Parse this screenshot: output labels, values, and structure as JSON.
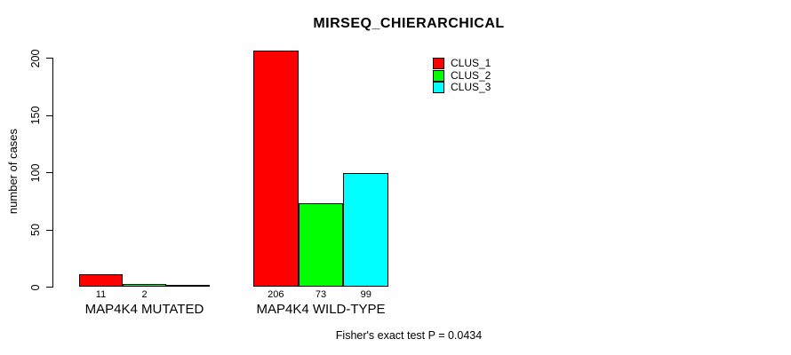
{
  "chart_data": {
    "type": "bar",
    "title": "MIRSEQ_CHIERARCHICAL",
    "ylabel": "number of cases",
    "xlabel": "",
    "categories": [
      "MAP4K4 MUTATED",
      "MAP4K4 WILD-TYPE"
    ],
    "series": [
      {
        "name": "CLUS_1",
        "color": "#ff0000",
        "values": [
          11,
          206
        ]
      },
      {
        "name": "CLUS_2",
        "color": "#00ff00",
        "values": [
          2,
          73
        ]
      },
      {
        "name": "CLUS_3",
        "color": "#00ffff",
        "values": [
          0,
          99
        ]
      }
    ],
    "yticks": [
      0,
      50,
      100,
      150,
      200
    ],
    "ylim": [
      0,
      200
    ],
    "grid": false,
    "bar_value_labels_shown_for_nonzero": true,
    "legend": {
      "position": "top-right",
      "entries": [
        {
          "label": "CLUS_1",
          "color": "#ff0000"
        },
        {
          "label": "CLUS_2",
          "color": "#00ff00"
        },
        {
          "label": "CLUS_3",
          "color": "#00ffff"
        }
      ]
    },
    "footnote": "Fisher's exact test P = 0.0434"
  }
}
